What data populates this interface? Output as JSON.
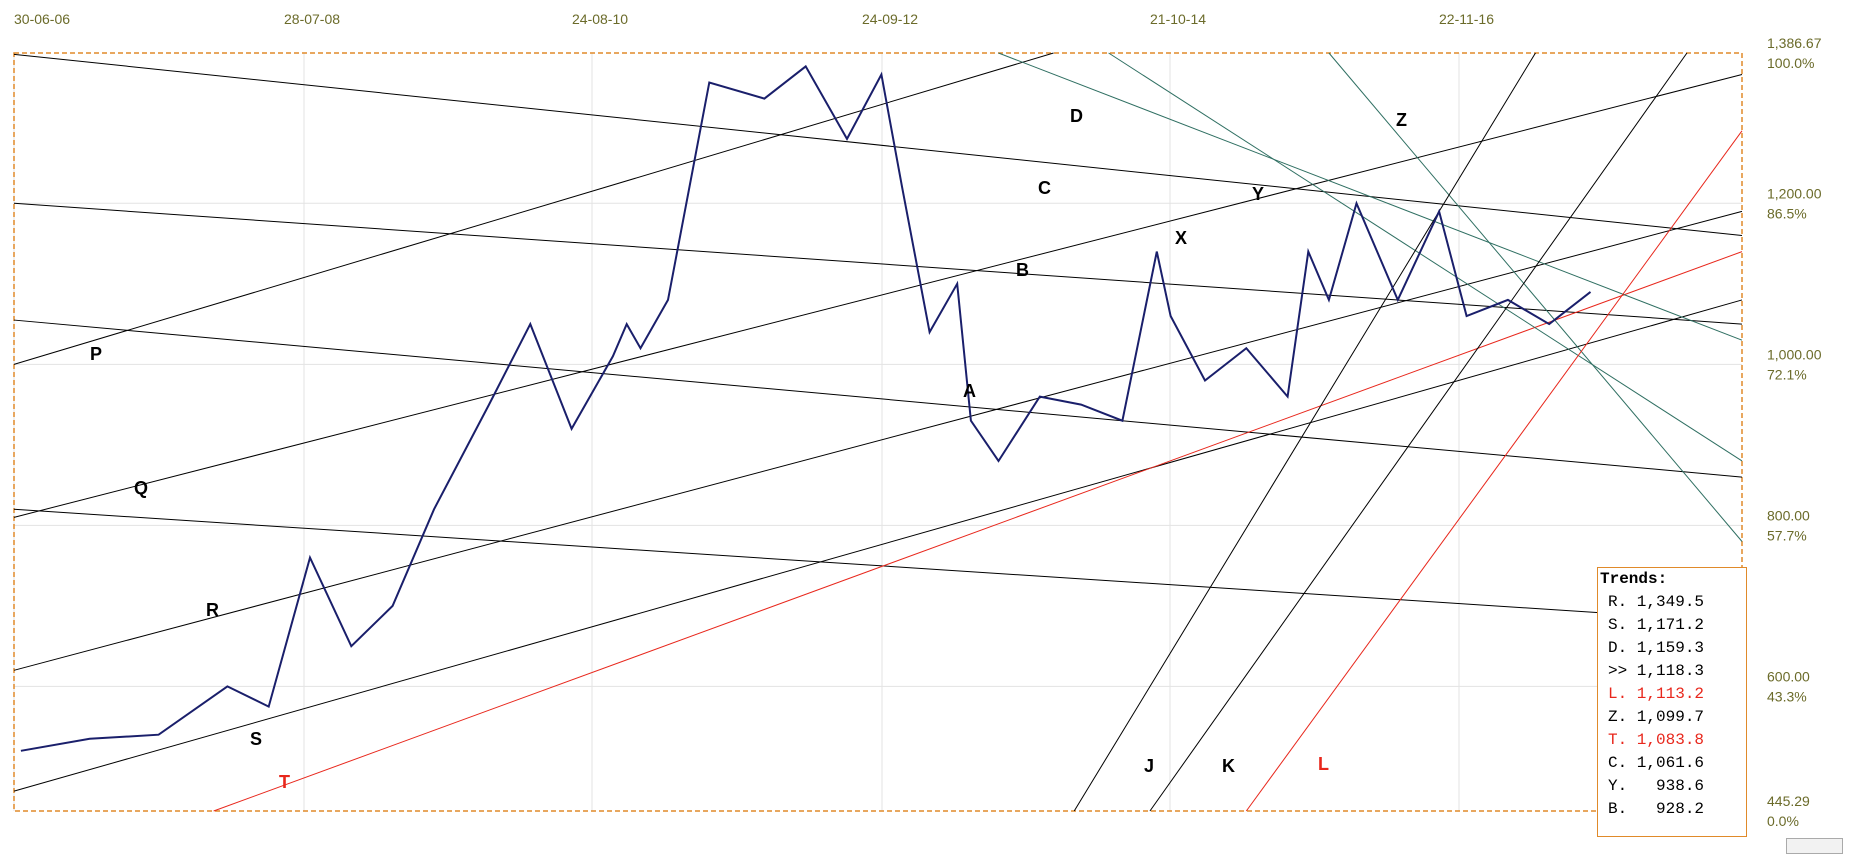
{
  "colors": {
    "background": "#ffffff",
    "frame": "#e08a2a",
    "price": "#1a1f6b",
    "trend_black": "#000000",
    "trend_teal": "#2f6f62",
    "trend_red": "#e8271c",
    "axis_text": "#6b6b2a",
    "grid": "#e3e3e3"
  },
  "chart_data": {
    "type": "line",
    "x_tick_labels": [
      "30-06-06",
      "28-07-08",
      "24-08-10",
      "24-09-12",
      "21-10-14",
      "22-11-16"
    ],
    "y_price_ticks": [
      "1,386.67",
      "1,200.00",
      "1,000.00",
      "800.00",
      "600.00",
      "445.29"
    ],
    "y_percent_ticks": [
      "100.0%",
      "86.5%",
      "72.1%",
      "57.7%",
      "43.3%",
      "0.0%"
    ],
    "ylim": [
      445.29,
      1386.67
    ],
    "series": [
      {
        "x": [
          2006.5,
          2007.0,
          2007.5,
          2008.0,
          2008.3,
          2008.6,
          2008.9,
          2009.2,
          2009.5,
          2009.9,
          2010.2,
          2010.5,
          2010.8,
          2010.9,
          2011.0,
          2011.2,
          2011.5,
          2011.9,
          2012.2,
          2012.5,
          2012.75,
          2012.9,
          2013.1,
          2013.3,
          2013.4,
          2013.6,
          2013.9,
          2014.2,
          2014.5,
          2014.75,
          2014.85,
          2015.1,
          2015.4,
          2015.7,
          2015.85,
          2016.0,
          2016.2,
          2016.5,
          2016.8,
          2017.0,
          2017.3,
          2017.6,
          2017.9
        ],
        "values": [
          520,
          535,
          540,
          600,
          575,
          760,
          650,
          700,
          820,
          950,
          1050,
          920,
          1010,
          1050,
          1020,
          1080,
          1350,
          1330,
          1370,
          1280,
          1360,
          1220,
          1040,
          1100,
          930,
          880,
          960,
          950,
          930,
          1140,
          1060,
          980,
          1020,
          960,
          1140,
          1080,
          1200,
          1080,
          1190,
          1060,
          1080,
          1050,
          1090
        ]
      }
    ]
  },
  "line_labels": [
    {
      "text": "D",
      "color": "#000000"
    },
    {
      "text": "C",
      "color": "#000000"
    },
    {
      "text": "B",
      "color": "#000000"
    },
    {
      "text": "A",
      "color": "#000000"
    },
    {
      "text": "P",
      "color": "#000000"
    },
    {
      "text": "Q",
      "color": "#000000"
    },
    {
      "text": "R",
      "color": "#000000"
    },
    {
      "text": "S",
      "color": "#000000"
    },
    {
      "text": "T",
      "color": "#e8271c"
    },
    {
      "text": "X",
      "color": "#000000"
    },
    {
      "text": "Y",
      "color": "#000000"
    },
    {
      "text": "Z",
      "color": "#000000"
    },
    {
      "text": "J",
      "color": "#000000"
    },
    {
      "text": "K",
      "color": "#000000"
    },
    {
      "text": "L",
      "color": "#e8271c"
    }
  ],
  "trends_box": {
    "title": "Trends:",
    "rows": [
      {
        "label": "R. 1,349.5",
        "color": "#000000"
      },
      {
        "label": "S. 1,171.2",
        "color": "#000000"
      },
      {
        "label": "D. 1,159.3",
        "color": "#000000"
      },
      {
        "label": ">> 1,118.3",
        "color": "#000000"
      },
      {
        "label": "L. 1,113.2",
        "color": "#e8271c"
      },
      {
        "label": "Z. 1,099.7",
        "color": "#000000"
      },
      {
        "label": "T. 1,083.8",
        "color": "#e8271c"
      },
      {
        "label": "C. 1,061.6",
        "color": "#000000"
      },
      {
        "label": "Y.   938.6",
        "color": "#000000"
      },
      {
        "label": "B.   928.2",
        "color": "#000000"
      }
    ]
  }
}
